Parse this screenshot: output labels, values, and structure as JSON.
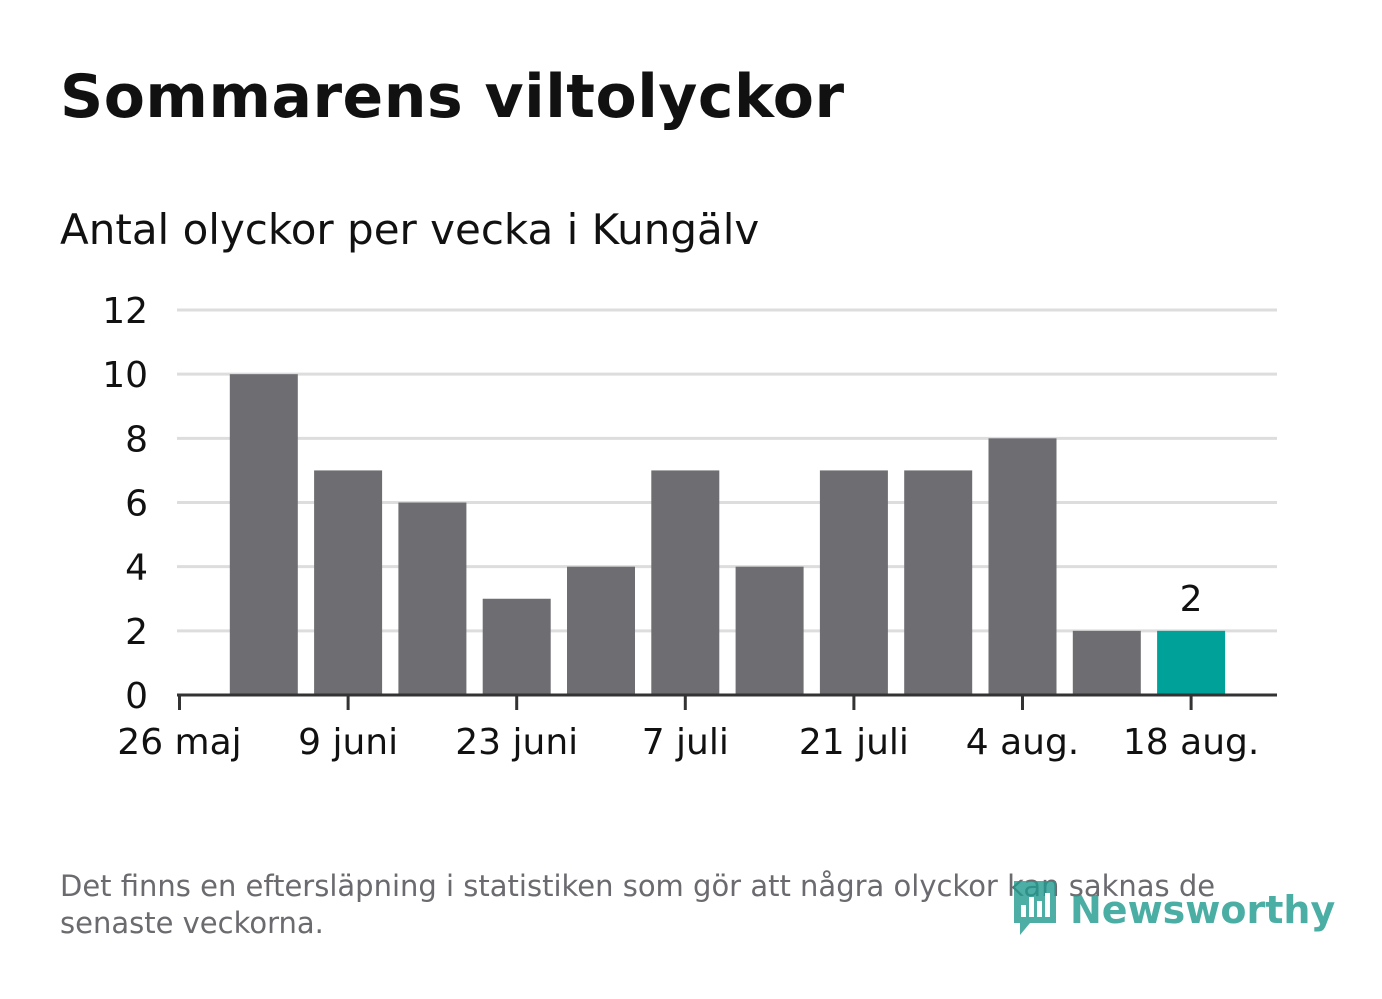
{
  "title": "Sommarens viltolyckor",
  "subtitle": "Antal olyckor per vecka i Kungälv",
  "footnote": "Det finns en eftersläpning i statistiken som gör att några olyckor kan saknas de senaste veckorna.",
  "logo": {
    "text": "Newsworthy",
    "icon": "newsworthy-logo-icon"
  },
  "colors": {
    "bar": "#6e6d72",
    "highlight": "#00a198",
    "grid": "#dddddd",
    "axis": "#333333",
    "text": "#111111"
  },
  "chart_data": {
    "type": "bar",
    "title": "Antal olyckor per vecka i Kungälv",
    "xlabel": "",
    "ylabel": "",
    "ylim": [
      0,
      12
    ],
    "yticks": [
      0,
      2,
      4,
      6,
      8,
      10,
      12
    ],
    "x_tick_labels": [
      "26 maj",
      "9 juni",
      "23 juni",
      "7 juli",
      "21 juli",
      "4 aug.",
      "18 aug."
    ],
    "values": [
      10,
      7,
      6,
      3,
      4,
      7,
      4,
      7,
      7,
      8,
      2,
      2
    ],
    "highlight_index": 11,
    "data_labels": [
      {
        "index": 11,
        "text": "2"
      }
    ],
    "grid": true,
    "legend": "none"
  }
}
